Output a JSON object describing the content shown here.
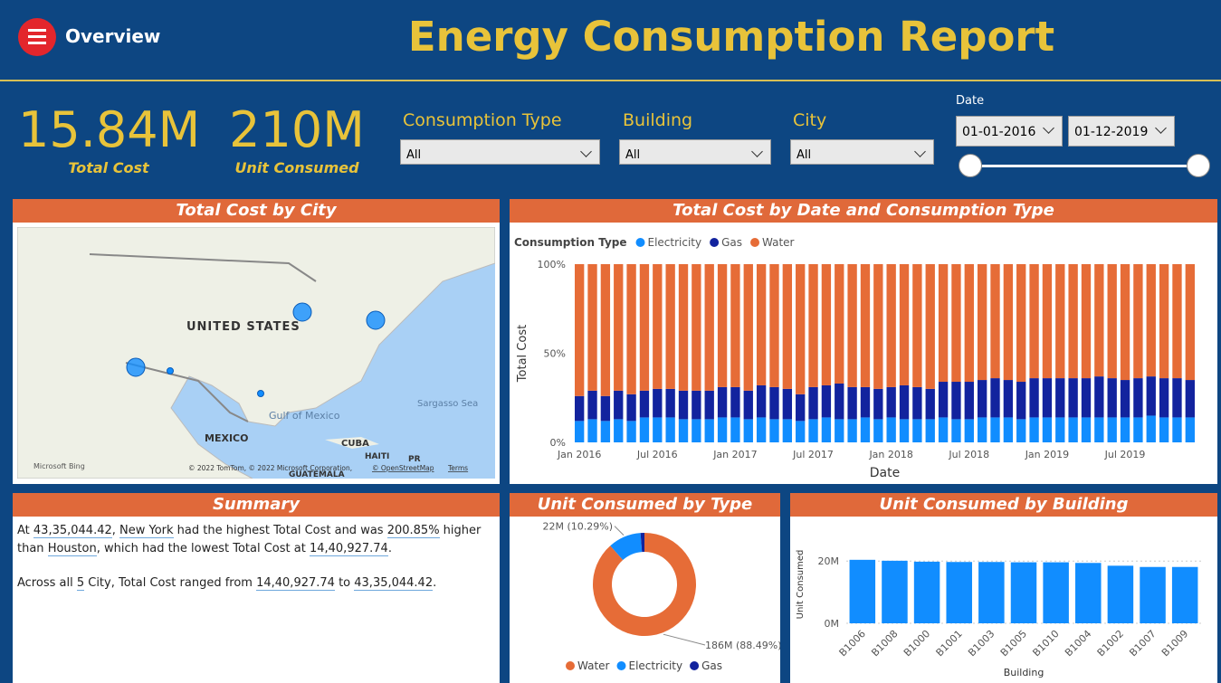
{
  "header": {
    "menu_label": "Overview",
    "title": "Energy Consumption Report"
  },
  "kpis": [
    {
      "value": "15.84M",
      "label": "Total Cost"
    },
    {
      "value": "210M",
      "label": "Unit Consumed"
    }
  ],
  "filters": [
    {
      "label": "Consumption Type",
      "selection": "All"
    },
    {
      "label": "Building",
      "selection": "All"
    },
    {
      "label": "City",
      "selection": "All"
    }
  ],
  "date_filter": {
    "label": "Date",
    "start": "01-01-2016",
    "end": "01-12-2019"
  },
  "map": {
    "title": "Total Cost by City",
    "labels": [
      "UNITED STATES",
      "Gulf of Mexico",
      "MEXICO",
      "CUBA",
      "HAITI",
      "PR",
      "GUATEMALA",
      "Sargasso Sea"
    ],
    "brand": "Microsoft Bing",
    "attribution": "© 2022 TomTom, © 2022 Microsoft Corporation,",
    "osm": "© OpenStreetMap",
    "terms": "Terms"
  },
  "summary": {
    "title": "Summary",
    "paragraphs": [
      [
        "At ",
        "43,35,044.42",
        ", ",
        "New York",
        " had the highest Total Cost and was ",
        "200.85%",
        " higher than ",
        "Houston",
        ", which had the lowest Total Cost at ",
        "14,40,927.74",
        "."
      ],
      [
        "Across all ",
        "5",
        " City, Total Cost ranged from ",
        "14,40,927.74",
        " to ",
        "43,35,044.42",
        "."
      ]
    ]
  },
  "chart_data": [
    {
      "type": "bar",
      "stacked": true,
      "title": "Total Cost by Date and Consumption Type",
      "legend_title": "Consumption Type",
      "x_label": "Date",
      "y_label": "Total Cost",
      "categories": [
        "Jan 2016",
        null,
        null,
        null,
        null,
        null,
        "Jul 2016",
        null,
        null,
        null,
        null,
        null,
        "Jan 2017",
        null,
        null,
        null,
        null,
        null,
        "Jul 2017",
        null,
        null,
        null,
        null,
        null,
        "Jan 2018",
        null,
        null,
        null,
        null,
        null,
        "Jul 2018",
        null,
        null,
        null,
        null,
        null,
        "Jan 2019",
        null,
        null,
        null,
        null,
        null,
        "Jul 2019",
        null,
        null,
        null,
        null,
        null
      ],
      "series": [
        {
          "name": "Electricity",
          "color": "#118dff",
          "values": [
            12,
            13,
            12,
            13,
            12,
            14,
            14,
            14,
            13,
            13,
            13,
            14,
            14,
            13,
            14,
            13,
            13,
            12,
            13,
            14,
            13,
            13,
            14,
            13,
            14,
            13,
            13,
            13,
            14,
            13,
            13,
            14,
            14,
            14,
            13,
            14,
            14,
            14,
            14,
            14,
            14,
            14,
            14,
            14,
            15,
            14,
            14,
            14
          ]
        },
        {
          "name": "Gas",
          "color": "#12239e",
          "values": [
            14,
            16,
            14,
            16,
            15,
            15,
            16,
            16,
            16,
            16,
            16,
            17,
            17,
            16,
            18,
            18,
            17,
            15,
            18,
            18,
            20,
            18,
            17,
            17,
            17,
            19,
            18,
            17,
            20,
            21,
            21,
            21,
            22,
            21,
            21,
            22,
            22,
            22,
            22,
            22,
            23,
            22,
            21,
            22,
            22,
            22,
            22,
            21
          ]
        },
        {
          "name": "Water",
          "color": "#e66c37",
          "values": [
            74,
            71,
            74,
            71,
            73,
            71,
            70,
            70,
            71,
            71,
            71,
            69,
            69,
            71,
            68,
            69,
            70,
            73,
            69,
            68,
            67,
            69,
            69,
            70,
            69,
            68,
            69,
            70,
            66,
            66,
            66,
            65,
            64,
            65,
            66,
            64,
            64,
            64,
            64,
            64,
            63,
            64,
            65,
            64,
            63,
            64,
            64,
            65
          ]
        }
      ],
      "ylim": [
        0,
        100
      ],
      "yticks": [
        {
          "value": 0,
          "label": "0%"
        },
        {
          "value": 50,
          "label": "50%"
        },
        {
          "value": 100,
          "label": "100%"
        }
      ]
    },
    {
      "type": "pie",
      "title": "Unit Consumed by Type",
      "categories": [
        "Water",
        "Electricity",
        "Gas"
      ],
      "values": [
        88.49,
        10.29,
        1.22
      ],
      "value_labels": [
        "186M (88.49%)",
        "22M (10.29%)",
        null
      ],
      "colors": [
        "#e66c37",
        "#118dff",
        "#12239e"
      ]
    },
    {
      "type": "bar",
      "title": "Unit Consumed by Building",
      "x_label": "Building",
      "y_label": "Unit Consumed",
      "categories": [
        "B1006",
        "B1008",
        "B1000",
        "B1001",
        "B1003",
        "B1005",
        "B1010",
        "B1004",
        "B1002",
        "B1007",
        "B1009"
      ],
      "values": [
        20.4,
        20.1,
        19.8,
        19.7,
        19.7,
        19.6,
        19.6,
        19.4,
        18.5,
        18.1,
        18.1
      ],
      "color": "#118dff",
      "ylim": [
        0,
        25
      ],
      "yticks": [
        {
          "value": 0,
          "label": "0M"
        },
        {
          "value": 20,
          "label": "20M"
        }
      ],
      "grid": true
    }
  ]
}
